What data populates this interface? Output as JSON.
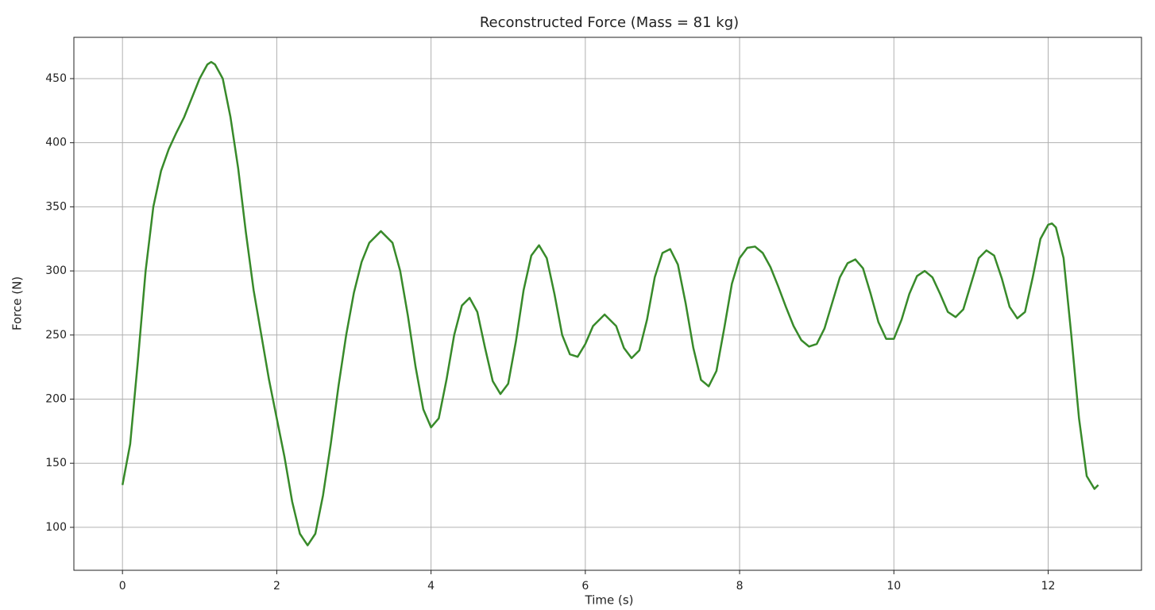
{
  "chart_data": {
    "type": "line",
    "title": "Reconstructed Force (Mass = 81 kg)",
    "x_label": "Time (s)",
    "y_label": "Force (N)",
    "x": [
      0,
      0.1,
      0.2,
      0.3,
      0.4,
      0.5,
      0.6,
      0.7,
      0.8,
      0.9,
      1.0,
      1.1,
      1.15,
      1.2,
      1.3,
      1.4,
      1.5,
      1.6,
      1.7,
      1.8,
      1.9,
      2.0,
      2.1,
      2.2,
      2.3,
      2.4,
      2.5,
      2.6,
      2.7,
      2.8,
      2.9,
      3.0,
      3.1,
      3.2,
      3.35,
      3.5,
      3.6,
      3.7,
      3.8,
      3.9,
      4.0,
      4.1,
      4.2,
      4.3,
      4.4,
      4.5,
      4.6,
      4.7,
      4.8,
      4.9,
      5.0,
      5.1,
      5.2,
      5.3,
      5.4,
      5.5,
      5.6,
      5.7,
      5.8,
      5.9,
      6.0,
      6.1,
      6.25,
      6.4,
      6.5,
      6.6,
      6.7,
      6.8,
      6.9,
      7.0,
      7.1,
      7.2,
      7.3,
      7.4,
      7.5,
      7.6,
      7.7,
      7.8,
      7.9,
      8.0,
      8.1,
      8.2,
      8.3,
      8.4,
      8.5,
      8.6,
      8.7,
      8.8,
      8.9,
      9.0,
      9.1,
      9.2,
      9.3,
      9.4,
      9.5,
      9.6,
      9.7,
      9.8,
      9.9,
      10.0,
      10.1,
      10.2,
      10.3,
      10.4,
      10.5,
      10.6,
      10.7,
      10.8,
      10.9,
      11.0,
      11.1,
      11.2,
      11.3,
      11.4,
      11.5,
      11.6,
      11.7,
      11.8,
      11.9,
      12.0,
      12.05,
      12.1,
      12.2,
      12.3,
      12.4,
      12.5,
      12.6,
      12.65
    ],
    "series": [
      {
        "name": "Force",
        "color": "#388a2a",
        "values": [
          133,
          165,
          230,
          300,
          350,
          378,
          395,
          408,
          420,
          435,
          450,
          461,
          463,
          461,
          450,
          420,
          380,
          330,
          285,
          250,
          215,
          185,
          155,
          120,
          95,
          86,
          95,
          125,
          165,
          210,
          250,
          283,
          307,
          322,
          331,
          322,
          300,
          265,
          225,
          192,
          178,
          185,
          215,
          250,
          273,
          279,
          268,
          240,
          214,
          204,
          212,
          245,
          285,
          312,
          320,
          310,
          282,
          250,
          235,
          233,
          243,
          257,
          266,
          257,
          240,
          232,
          238,
          262,
          295,
          314,
          317,
          305,
          275,
          240,
          215,
          210,
          222,
          255,
          290,
          310,
          318,
          319,
          314,
          303,
          288,
          272,
          257,
          246,
          241,
          243,
          255,
          275,
          295,
          306,
          309,
          302,
          282,
          260,
          247,
          247,
          262,
          282,
          296,
          300,
          295,
          282,
          268,
          264,
          270,
          290,
          310,
          316,
          312,
          294,
          272,
          263,
          268,
          295,
          325,
          336,
          337,
          334,
          310,
          250,
          185,
          140,
          130,
          133
        ]
      }
    ],
    "xlim": [
      -0.63,
      13.21
    ],
    "ylim": [
      66.5,
      482.2
    ],
    "xticks": [
      0,
      2,
      4,
      6,
      8,
      10,
      12
    ],
    "yticks": [
      100,
      150,
      200,
      250,
      300,
      350,
      400,
      450
    ],
    "grid": true
  }
}
